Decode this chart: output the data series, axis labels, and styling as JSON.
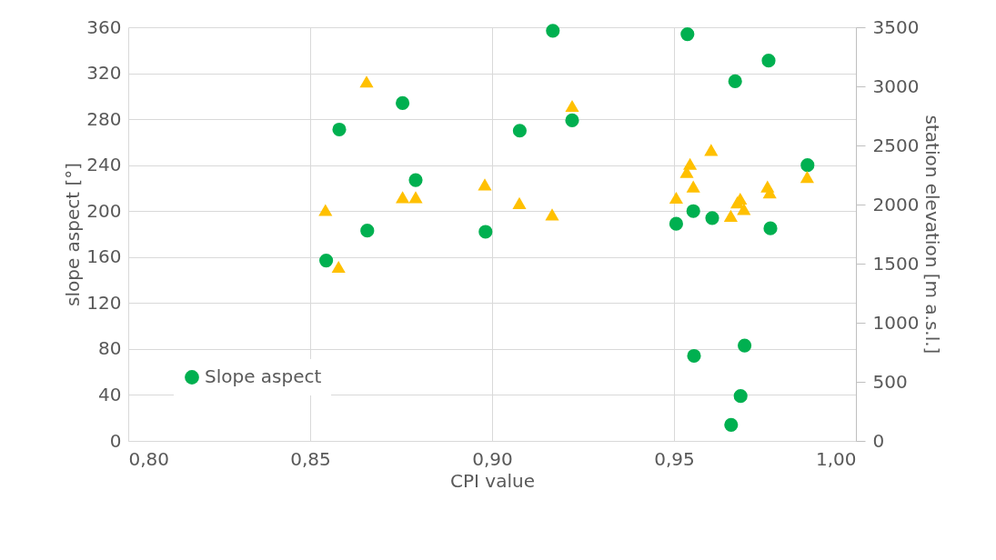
{
  "chart_data": {
    "type": "scatter",
    "xlabel": "CPI value",
    "ylabel": "slope aspect [°]",
    "y2label": "station elevation [m a.s.l.]",
    "xlim": [
      0.8,
      1.0
    ],
    "xticks": [
      {
        "value": 0.8,
        "label": "0,80"
      },
      {
        "value": 0.85,
        "label": "0,85"
      },
      {
        "value": 0.9,
        "label": "0,90"
      },
      {
        "value": 0.95,
        "label": "0,95"
      },
      {
        "value": 1.0,
        "label": "1,00"
      }
    ],
    "ylim": [
      0,
      360
    ],
    "yticks": [
      0,
      40,
      80,
      120,
      160,
      200,
      240,
      280,
      320,
      360
    ],
    "y2lim": [
      0,
      3500
    ],
    "y2ticks": [
      0,
      500,
      1000,
      1500,
      2000,
      2500,
      3000,
      3500
    ],
    "grid": true,
    "legend": "bottom left",
    "series": [
      {
        "name": "Slope aspect",
        "color": "#00b050",
        "marker": "circle",
        "x": [
          0.8544,
          0.858,
          0.8657,
          0.8754,
          0.879,
          0.8982,
          0.9076,
          0.9167,
          0.922,
          0.9506,
          0.9553,
          0.9605,
          0.9765,
          0.9668,
          0.976,
          0.9537,
          0.9867,
          0.9555,
          0.9694,
          0.9683,
          0.9657
        ],
        "values": [
          157,
          271,
          183,
          294,
          227,
          182,
          270,
          357,
          279,
          189,
          200,
          194,
          185,
          313,
          331,
          354,
          240,
          74,
          83,
          39,
          14
        ]
      },
      {
        "color": "#ffc000",
        "marker": "triangle",
        "axis": "y2",
        "x": [
          0.8655,
          0.922,
          0.8542,
          0.8754,
          0.879,
          0.898,
          0.9075,
          0.9165,
          0.8578,
          0.9602,
          0.9544,
          0.9535,
          0.9553,
          0.9506,
          0.9656,
          0.9674,
          0.9682,
          0.9692,
          0.9757,
          0.9763,
          0.9866
        ],
        "values": [
          3040,
          2835,
          1954,
          2063,
          2063,
          2170,
          2012,
          1916,
          1473,
          2463,
          2344,
          2275,
          2153,
          2058,
          1905,
          2018,
          2050,
          1962,
          2153,
          2102,
          2234
        ]
      }
    ]
  }
}
